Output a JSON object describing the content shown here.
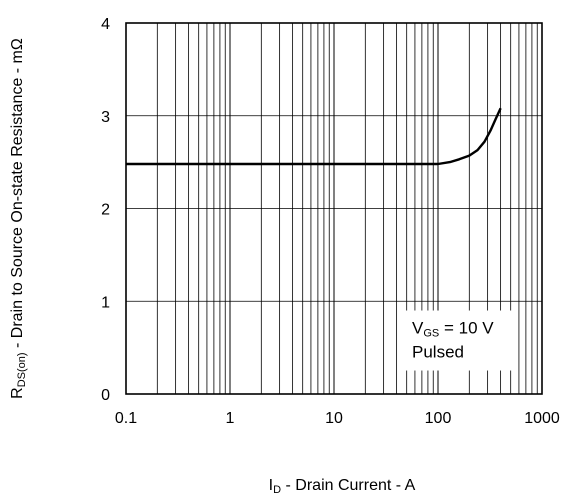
{
  "chart_data": {
    "type": "line",
    "x_scale": "log",
    "xlim": [
      0.1,
      1000
    ],
    "ylim": [
      0,
      4
    ],
    "x_ticks": [
      "0.1",
      "1",
      "10",
      "100",
      "1000"
    ],
    "y_ticks": [
      "0",
      "1",
      "2",
      "3",
      "4"
    ],
    "grid": true,
    "xlabel": {
      "main": "I",
      "sub": "D",
      "rest": " - Drain Current - A"
    },
    "ylabel": {
      "main": "R",
      "sub": "DS(on)",
      "rest": " - Drain to Source On-state Resistance - mΩ"
    },
    "annotation": {
      "line1_main": "V",
      "line1_sub": "GS",
      "line1_rest": " = 10 V",
      "line2": "Pulsed"
    },
    "series": [
      {
        "x": [
          0.1,
          1,
          10,
          100,
          130,
          160,
          200,
          240,
          280,
          320,
          360,
          400
        ],
        "y": [
          2.48,
          2.48,
          2.48,
          2.48,
          2.5,
          2.53,
          2.57,
          2.63,
          2.72,
          2.84,
          2.97,
          3.08
        ]
      }
    ],
    "colors": {
      "line": "#000000",
      "grid": "#000000",
      "annotation_bg": "#ffffff"
    }
  }
}
